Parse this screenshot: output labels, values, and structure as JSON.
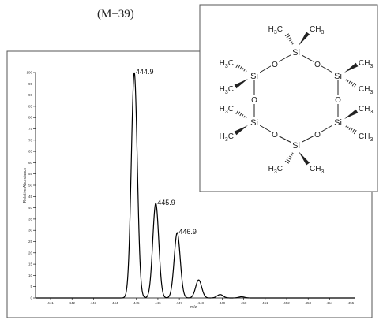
{
  "header": {
    "ion_label": "(M+39)"
  },
  "chart_data": {
    "type": "line",
    "title": "",
    "xlabel": "m/z",
    "ylabel": "Relative Abundance",
    "xlim": [
      440.3,
      455.2
    ],
    "ylim": [
      0,
      100
    ],
    "x_ticks": [
      441,
      442,
      443,
      444,
      445,
      446,
      447,
      448,
      449,
      450,
      451,
      452,
      453,
      454,
      455
    ],
    "y_ticks": [
      0,
      5,
      10,
      15,
      20,
      25,
      30,
      35,
      40,
      45,
      50,
      55,
      60,
      65,
      70,
      75,
      80,
      85,
      90,
      95,
      100
    ],
    "grid": false,
    "series": [
      {
        "peaks": [
          {
            "x": 444.9,
            "y": 100
          },
          {
            "x": 445.9,
            "y": 42
          },
          {
            "x": 446.9,
            "y": 29
          },
          {
            "x": 447.9,
            "y": 8
          },
          {
            "x": 448.9,
            "y": 1.5
          },
          {
            "x": 449.9,
            "y": 0.5
          }
        ]
      }
    ],
    "annotations": [
      {
        "x": 444.9,
        "text": "444.9"
      },
      {
        "x": 445.9,
        "text": "445.9"
      },
      {
        "x": 446.9,
        "text": "446.9"
      }
    ]
  },
  "structure": {
    "title": "",
    "si_label": "Si",
    "o_label": "O",
    "methyl_label": "H3C",
    "methyl_sub_label": "3",
    "ch3_label": "CH3"
  }
}
